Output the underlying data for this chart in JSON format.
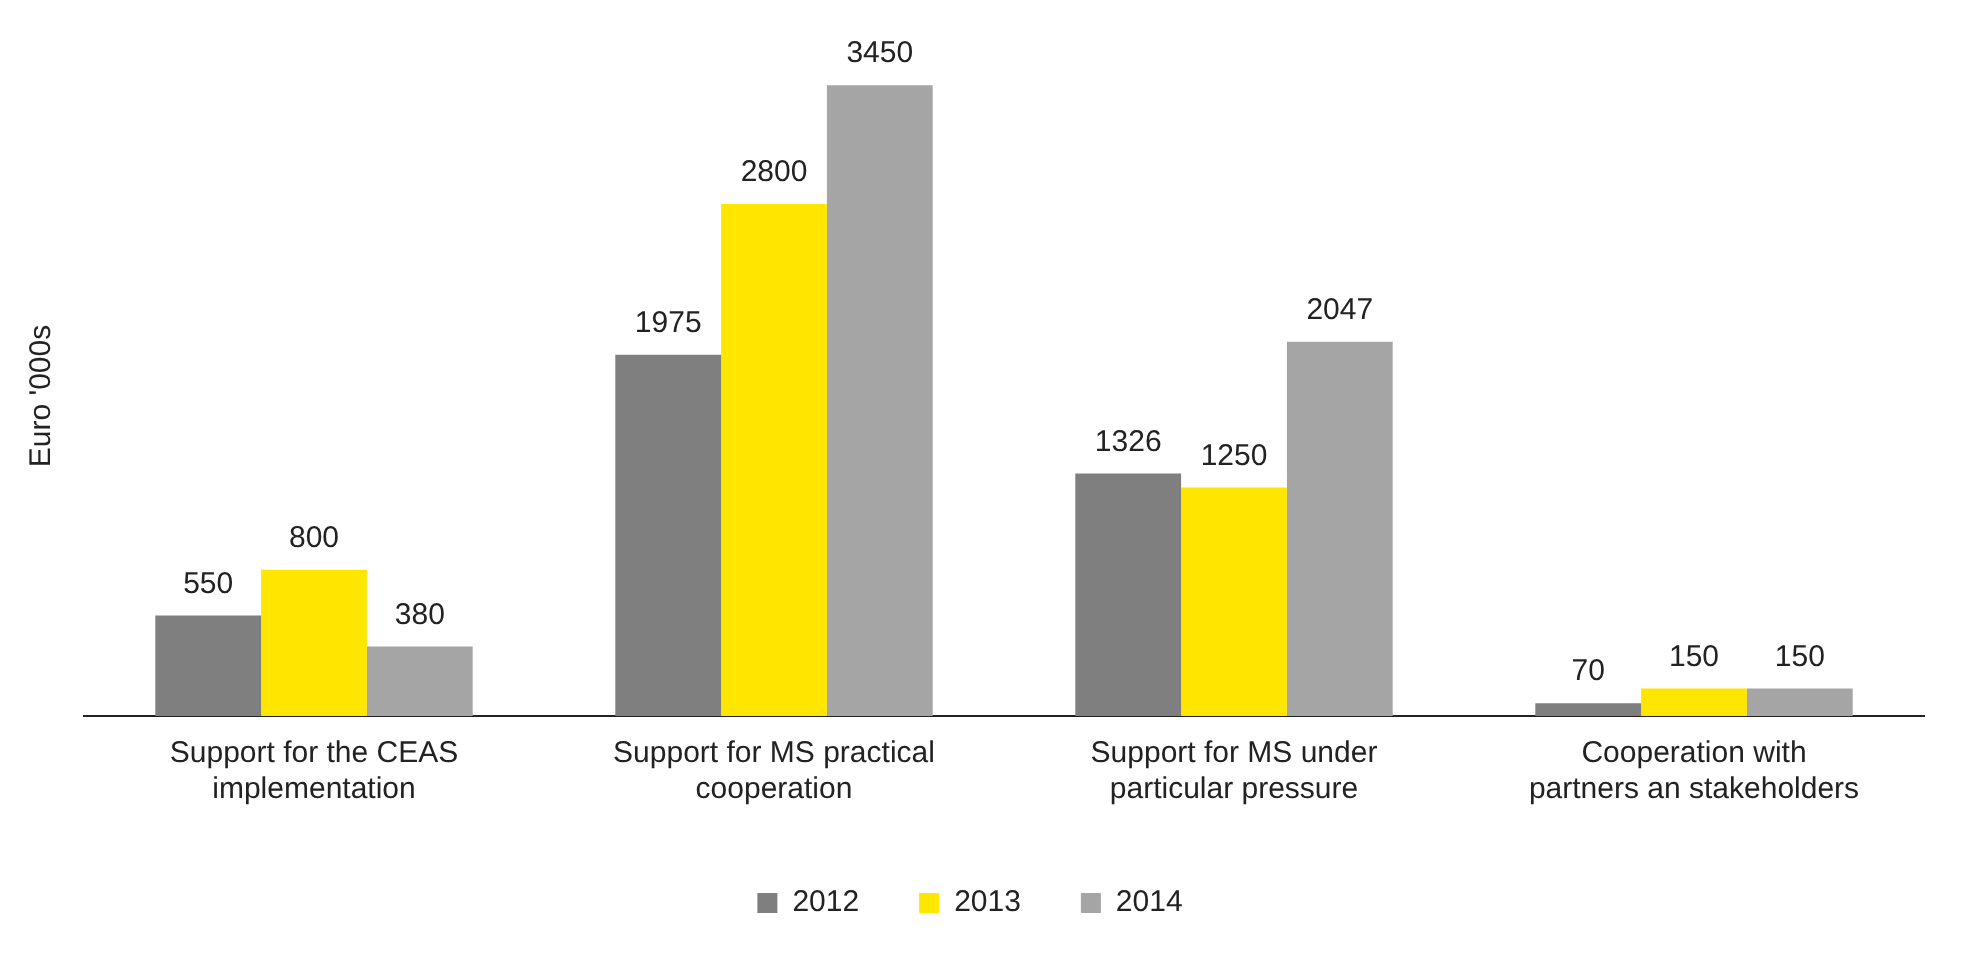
{
  "chart_data": {
    "type": "bar",
    "ylabel": "Euro '000s",
    "categories": [
      "Support for the CEAS implementation",
      "Support for MS practical cooperation",
      "Support for MS under particular pressure",
      "Cooperation with partners an stakeholders"
    ],
    "series": [
      {
        "name": "2012",
        "color": "#7f7f7f",
        "values": [
          550,
          1975,
          1326,
          70
        ]
      },
      {
        "name": "2013",
        "color": "#ffe600",
        "values": [
          800,
          2800,
          1250,
          150
        ]
      },
      {
        "name": "2014",
        "color": "#a5a5a5",
        "values": [
          380,
          3450,
          2047,
          150
        ]
      }
    ],
    "data_labels": true,
    "legend": "bottom",
    "grid": false
  }
}
